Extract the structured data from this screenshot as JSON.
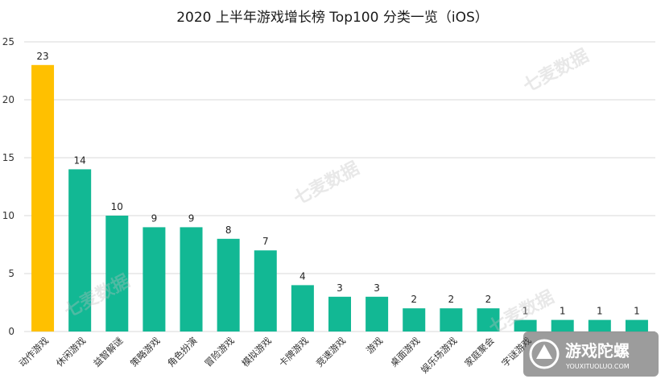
{
  "chart_data": {
    "type": "bar",
    "title": "2020 上半年游戏增长榜 Top100 分类一览（iOS）",
    "xlabel": "",
    "ylabel": "",
    "ylim": [
      0,
      25
    ],
    "yticks": [
      0,
      5,
      10,
      15,
      20,
      25
    ],
    "grid": true,
    "legend": "none",
    "highlight_color": "#FFC000",
    "bar_color": "#12B894",
    "highlight_index": 0,
    "categories": [
      "动作游戏",
      "休闲游戏",
      "益智解谜",
      "策略游戏",
      "角色扮演",
      "冒险游戏",
      "模拟游戏",
      "卡牌游戏",
      "竞速游戏",
      "游戏",
      "桌面游戏",
      "娱乐场游戏",
      "家庭聚会",
      "字谜游戏",
      "",
      "",
      ""
    ],
    "values": [
      23,
      14,
      10,
      9,
      9,
      8,
      7,
      4,
      3,
      3,
      2,
      2,
      2,
      1,
      1,
      1,
      1
    ]
  },
  "watermarks": {
    "text": "七麦数据"
  },
  "logo": {
    "name": "游戏陀螺",
    "url_text": "YOUXITUOLUO.COM"
  }
}
